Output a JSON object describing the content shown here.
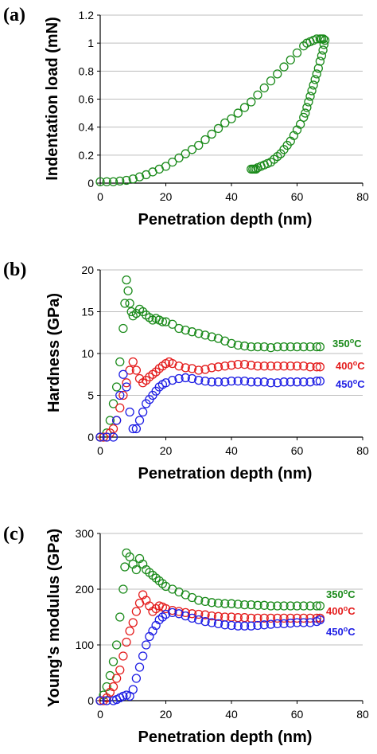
{
  "chart_data": [
    {
      "type": "scatter",
      "panel_label": "(a)",
      "xlabel": "Penetration depth (nm)",
      "ylabel": "Indentation load (mN)",
      "xlim": [
        0,
        80
      ],
      "ylim": [
        0,
        1.2
      ],
      "xticks": [
        "0",
        "20",
        "40",
        "60",
        "80"
      ],
      "yticks": [
        "0",
        "0.2",
        "0.4",
        "0.6",
        "0.8",
        "1",
        "1.2"
      ],
      "grid": "horizontal",
      "marker": "open-circle",
      "series": [
        {
          "color": "#1a8a1a",
          "x": [
            0,
            2,
            4,
            6,
            8,
            10,
            12,
            14,
            16,
            18,
            20,
            22,
            24,
            26,
            28,
            30,
            32,
            34,
            36,
            38,
            40,
            42,
            44,
            46,
            48,
            50,
            52,
            54,
            56,
            58,
            60,
            62,
            63,
            64,
            65,
            66,
            67,
            67.5,
            68,
            68.5,
            68.2,
            67.9,
            67.5,
            67,
            66.5,
            66,
            65.5,
            65,
            64.5,
            64,
            63.5,
            63,
            62.5,
            62,
            61,
            60,
            59,
            58,
            57,
            56,
            55,
            54,
            53,
            52,
            51,
            50,
            49,
            48,
            47.5,
            47,
            46.5,
            46
          ],
          "y": [
            0.01,
            0.01,
            0.01,
            0.015,
            0.02,
            0.03,
            0.045,
            0.06,
            0.08,
            0.1,
            0.12,
            0.15,
            0.18,
            0.21,
            0.24,
            0.27,
            0.31,
            0.35,
            0.39,
            0.43,
            0.46,
            0.5,
            0.54,
            0.58,
            0.63,
            0.68,
            0.73,
            0.78,
            0.83,
            0.88,
            0.93,
            0.98,
            1.0,
            1.01,
            1.02,
            1.03,
            1.03,
            1.03,
            1.03,
            1.02,
            0.99,
            0.95,
            0.91,
            0.87,
            0.82,
            0.78,
            0.74,
            0.7,
            0.66,
            0.62,
            0.58,
            0.54,
            0.5,
            0.47,
            0.42,
            0.38,
            0.34,
            0.3,
            0.27,
            0.24,
            0.21,
            0.19,
            0.17,
            0.15,
            0.14,
            0.13,
            0.12,
            0.11,
            0.1,
            0.1,
            0.1,
            0.1
          ]
        }
      ]
    },
    {
      "type": "scatter",
      "panel_label": "(b)",
      "xlabel": "Penetration depth (nm)",
      "ylabel": "Hardness (GPa)",
      "xlim": [
        0,
        80
      ],
      "ylim": [
        0,
        20
      ],
      "xticks": [
        "0",
        "20",
        "40",
        "60",
        "80"
      ],
      "yticks": [
        "0",
        "5",
        "10",
        "15",
        "20"
      ],
      "grid": "horizontal",
      "marker": "open-circle",
      "series": [
        {
          "name_main": "350",
          "name_sup": "o",
          "name_tail": "C",
          "color": "#1a8a1a",
          "x": [
            0,
            1,
            2,
            3,
            4,
            5,
            6,
            7,
            7.5,
            8,
            8.5,
            9,
            9.5,
            10,
            11,
            12,
            13,
            14,
            15,
            16,
            17,
            18,
            19,
            20,
            22,
            24,
            26,
            28,
            30,
            32,
            34,
            36,
            38,
            40,
            42,
            44,
            46,
            48,
            50,
            52,
            54,
            56,
            58,
            60,
            62,
            64,
            66,
            67
          ],
          "y": [
            0,
            0,
            0.5,
            2,
            4,
            6,
            9,
            13,
            16,
            18.8,
            17.5,
            16,
            15,
            14.5,
            14.8,
            15.3,
            15.0,
            14.6,
            14.3,
            14.0,
            14.2,
            14.0,
            13.8,
            13.8,
            13.5,
            13.0,
            12.8,
            12.6,
            12.4,
            12.2,
            12.0,
            11.8,
            11.5,
            11.2,
            11.0,
            10.9,
            10.8,
            10.8,
            10.8,
            10.7,
            10.8,
            10.8,
            10.8,
            10.8,
            10.8,
            10.8,
            10.8,
            10.8
          ]
        },
        {
          "name_main": "400",
          "name_sup": "o",
          "name_tail": "C",
          "color": "#e41c1c",
          "x": [
            0,
            1,
            2,
            3,
            4,
            5,
            6,
            7,
            8,
            9,
            10,
            11,
            12,
            13,
            14,
            15,
            16,
            17,
            18,
            19,
            20,
            21,
            22,
            24,
            26,
            28,
            30,
            32,
            34,
            36,
            38,
            40,
            42,
            44,
            46,
            48,
            50,
            52,
            54,
            56,
            58,
            60,
            62,
            64,
            66,
            67
          ],
          "y": [
            0,
            0,
            0,
            0.5,
            1,
            2,
            3.5,
            5,
            6.5,
            8,
            9,
            8,
            7,
            6.5,
            6.8,
            7.2,
            7.5,
            7.8,
            8.2,
            8.5,
            8.8,
            9.0,
            8.8,
            8.5,
            8.3,
            8.2,
            8.0,
            8.1,
            8.3,
            8.4,
            8.5,
            8.6,
            8.7,
            8.7,
            8.6,
            8.5,
            8.5,
            8.5,
            8.5,
            8.5,
            8.5,
            8.5,
            8.5,
            8.4,
            8.4,
            8.4
          ]
        },
        {
          "name_main": "450",
          "name_sup": "o",
          "name_tail": "C",
          "color": "#1c1ce4",
          "x": [
            0,
            2,
            4,
            5,
            6,
            7,
            8,
            9,
            10,
            11,
            12,
            13,
            14,
            15,
            16,
            17,
            18,
            19,
            20,
            22,
            24,
            26,
            28,
            30,
            32,
            34,
            36,
            38,
            40,
            42,
            44,
            46,
            48,
            50,
            52,
            54,
            56,
            58,
            60,
            62,
            64,
            66,
            67
          ],
          "y": [
            0,
            0,
            0,
            2,
            5,
            7.5,
            6,
            3,
            1,
            1,
            2,
            3,
            4,
            4.5,
            5,
            5.5,
            6,
            6.3,
            6.5,
            6.8,
            7.0,
            7.1,
            7.0,
            6.8,
            6.7,
            6.6,
            6.6,
            6.6,
            6.7,
            6.7,
            6.7,
            6.6,
            6.6,
            6.6,
            6.5,
            6.5,
            6.6,
            6.6,
            6.6,
            6.6,
            6.6,
            6.7,
            6.7
          ]
        }
      ]
    },
    {
      "type": "scatter",
      "panel_label": "(c)",
      "xlabel": "Penetration depth (nm)",
      "ylabel": "Young's modulus (GPa)",
      "xlim": [
        0,
        80
      ],
      "ylim": [
        0,
        300
      ],
      "xticks": [
        "0",
        "20",
        "40",
        "60",
        "80"
      ],
      "yticks": [
        "0",
        "100",
        "200",
        "300"
      ],
      "grid": "horizontal",
      "marker": "open-circle",
      "series": [
        {
          "name_main": "350",
          "name_sup": "o",
          "name_tail": "C",
          "color": "#1a8a1a",
          "x": [
            0,
            1,
            2,
            3,
            4,
            5,
            6,
            7,
            7.5,
            8,
            9,
            10,
            11,
            12,
            13,
            14,
            15,
            16,
            17,
            18,
            19,
            20,
            22,
            24,
            26,
            28,
            30,
            32,
            34,
            36,
            38,
            40,
            42,
            44,
            46,
            48,
            50,
            52,
            54,
            56,
            58,
            60,
            62,
            64,
            66,
            67
          ],
          "y": [
            0,
            10,
            25,
            45,
            70,
            100,
            150,
            200,
            240,
            265,
            258,
            245,
            235,
            255,
            245,
            235,
            230,
            225,
            220,
            215,
            210,
            205,
            200,
            195,
            190,
            185,
            180,
            178,
            176,
            175,
            174,
            174,
            173,
            172,
            172,
            171,
            171,
            170,
            170,
            170,
            170,
            170,
            170,
            170,
            170,
            170
          ]
        },
        {
          "name_main": "400",
          "name_sup": "o",
          "name_tail": "C",
          "color": "#e41c1c",
          "x": [
            0,
            1,
            2,
            3,
            4,
            5,
            6,
            7,
            8,
            9,
            10,
            11,
            12,
            13,
            14,
            15,
            16,
            17,
            18,
            19,
            20,
            22,
            24,
            26,
            28,
            30,
            32,
            34,
            36,
            38,
            40,
            42,
            44,
            46,
            48,
            50,
            52,
            54,
            56,
            58,
            60,
            62,
            64,
            66,
            67
          ],
          "y": [
            0,
            0,
            5,
            15,
            25,
            40,
            55,
            80,
            105,
            125,
            140,
            160,
            175,
            190,
            180,
            170,
            160,
            165,
            170,
            168,
            165,
            162,
            160,
            158,
            156,
            155,
            154,
            152,
            151,
            150,
            150,
            149,
            149,
            148,
            148,
            148,
            148,
            148,
            148,
            148,
            148,
            148,
            148,
            148,
            148
          ]
        },
        {
          "name_main": "450",
          "name_sup": "o",
          "name_tail": "C",
          "color": "#1c1ce4",
          "x": [
            0,
            2,
            4,
            5,
            6,
            7,
            8,
            9,
            10,
            11,
            12,
            13,
            14,
            15,
            16,
            17,
            18,
            19,
            20,
            22,
            24,
            26,
            28,
            30,
            32,
            34,
            36,
            38,
            40,
            42,
            44,
            46,
            48,
            50,
            52,
            54,
            56,
            58,
            60,
            62,
            64,
            66,
            67
          ],
          "y": [
            0,
            0,
            0,
            2,
            5,
            8,
            10,
            8,
            20,
            40,
            60,
            80,
            100,
            115,
            125,
            135,
            145,
            150,
            155,
            158,
            156,
            152,
            148,
            145,
            142,
            140,
            138,
            136,
            135,
            134,
            134,
            134,
            135,
            136,
            137,
            138,
            138,
            139,
            140,
            140,
            140,
            142,
            145
          ]
        }
      ]
    }
  ]
}
